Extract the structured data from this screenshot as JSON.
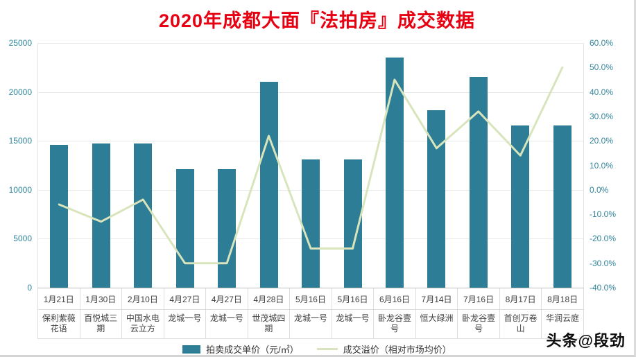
{
  "title": "2020年成都大面『法拍房』成交数据",
  "watermark": "头条@段劲",
  "chart_data": {
    "type": "bar",
    "subtype": "bar+line dual axis",
    "categories": [
      {
        "date": "1月21日",
        "name": "保利紫薇花语"
      },
      {
        "date": "1月30日",
        "name": "百悦城三期"
      },
      {
        "date": "2月10日",
        "name": "中国水电云立方"
      },
      {
        "date": "4月27日",
        "name": "龙城一号"
      },
      {
        "date": "4月27日",
        "name": "龙城一号"
      },
      {
        "date": "4月28日",
        "name": "世茂城四期"
      },
      {
        "date": "5月16日",
        "name": "龙城一号"
      },
      {
        "date": "5月16日",
        "name": "龙城一号"
      },
      {
        "date": "6月16日",
        "name": "卧龙谷壹号"
      },
      {
        "date": "7月14日",
        "name": "恒大绿洲"
      },
      {
        "date": "7月16日",
        "name": "卧龙谷壹号"
      },
      {
        "date": "8月17日",
        "name": "首创万卷山"
      },
      {
        "date": "8月18日",
        "name": "华润云庭"
      }
    ],
    "series": [
      {
        "name": "拍卖成交单价（元/㎡）",
        "type": "bar",
        "axis": "left",
        "values": [
          14600,
          14700,
          14700,
          12100,
          12100,
          21000,
          13100,
          13100,
          23500,
          18100,
          21500,
          16600,
          16600
        ]
      },
      {
        "name": "成交溢价（相对市场均价）",
        "type": "line",
        "axis": "right",
        "values": [
          -6,
          -13,
          -4,
          -30,
          -30,
          22,
          -24,
          -24,
          45,
          17,
          32,
          14,
          50
        ]
      }
    ],
    "left_axis": {
      "min": 0,
      "max": 25000,
      "step": 5000
    },
    "right_axis": {
      "min": -40,
      "max": 60,
      "step": 10,
      "suffix": "%",
      "decimals": 1
    },
    "grid": true,
    "legend_position": "bottom",
    "colors": {
      "bar": "#2E7D96",
      "line": "#D8E4BC",
      "title": "#E60012",
      "axis_text": "#31859C",
      "label_text": "#404040"
    }
  }
}
